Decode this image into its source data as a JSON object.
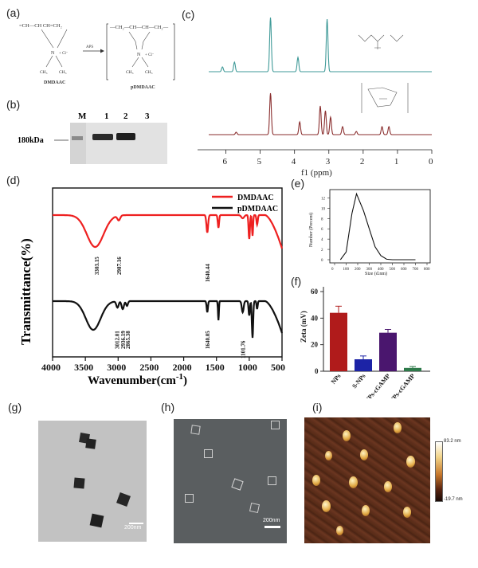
{
  "panels": {
    "a": "(a)",
    "b": "(b)",
    "c": "(c)",
    "d": "(d)",
    "e": "(e)",
    "f": "(f)",
    "g": "(g)",
    "h": "(h)",
    "i": "(i)"
  },
  "scheme": {
    "monomer_label": "DMDAAC",
    "polymer_label": "pDMDAAC",
    "arrow_label": "APS",
    "monomer_formula": "=CH—CH  CH=CH₂",
    "polymer_formula": "—CH₂—CH—CH—CH₂—",
    "methyl": "CH₃"
  },
  "gel": {
    "lanes": [
      "M",
      "1",
      "2",
      "3"
    ],
    "marker": "180kDa"
  },
  "nmr": {
    "xlabel": "f1 (ppm)",
    "ticks": [
      "6",
      "5",
      "4",
      "3",
      "2",
      "1",
      "0"
    ]
  },
  "ftir": {
    "ylabel": "Transmittance(%)",
    "xlabel": "Wavenumber(cm",
    "xlabel_sup": "-1",
    "xlabel_end": ")",
    "ticks": [
      "4000",
      "3500",
      "3000",
      "2500",
      "2000",
      "1500",
      "1000",
      "500"
    ],
    "legend": [
      "DMDAAC",
      "pDMDAAC"
    ],
    "colors": {
      "DMDAAC": "#ee2020",
      "pDMDAAC": "#111111"
    },
    "annotations_top": [
      "3303.15",
      "2987.16",
      "1640.44"
    ],
    "annotations_bottom": [
      "3012.01",
      "2936.19",
      "2865.38",
      "1640.05",
      "1101.76"
    ]
  },
  "dls": {
    "ylabel": "Number (Percent)",
    "xlabel": "Size (d.nm)",
    "xticks": [
      "0",
      "100",
      "200",
      "300",
      "400",
      "500",
      "600",
      "700",
      "800"
    ],
    "yticks": [
      "0",
      "2",
      "4",
      "6",
      "8",
      "10",
      "12"
    ]
  },
  "zeta": {
    "ylabel": "Zeta (mV)",
    "yticks": [
      "0",
      "20",
      "40",
      "60"
    ]
  },
  "micrographs": {
    "scale_g": "200nm",
    "scale_h": "200nm",
    "afm_max": "83.2 nm",
    "afm_min": "-19.7 nm"
  },
  "chart_data": [
    {
      "type": "line",
      "title": "",
      "xlabel": "f1 (ppm)",
      "xlim": [
        6.5,
        0
      ],
      "series": [
        {
          "peaks_ppm": [
            6.1,
            5.75,
            4.7,
            3.9,
            3.05
          ]
        },
        {
          "peaks_ppm": [
            5.7,
            4.7,
            3.85,
            3.25,
            3.1,
            2.95,
            2.6,
            2.2,
            1.45,
            1.25
          ]
        }
      ]
    },
    {
      "type": "line",
      "xlabel": "Wavenumber(cm-1)",
      "ylabel": "Transmittance(%)",
      "xlim": [
        4000,
        500
      ],
      "series": [
        {
          "name": "DMDAAC",
          "minima": [
            3303.15,
            2987.16,
            1640.44,
            1470,
            1000,
            950,
            880
          ]
        },
        {
          "name": "pDMDAAC",
          "minima": [
            3380,
            3012.01,
            2936.19,
            2865.38,
            1640.05,
            1470,
            1101.76,
            950
          ]
        }
      ]
    },
    {
      "type": "line",
      "xlabel": "Size (d.nm)",
      "ylabel": "Number (Percent)",
      "xlim": [
        0,
        800
      ],
      "ylim": [
        0,
        13
      ],
      "series": [
        {
          "x": [
            50,
            100,
            150,
            190,
            250,
            300,
            350,
            400,
            450,
            500,
            700
          ],
          "y": [
            0,
            1.5,
            9,
            12.8,
            9.5,
            6,
            2.5,
            0.8,
            0.1,
            0,
            0
          ]
        }
      ]
    },
    {
      "type": "bar",
      "ylabel": "Zeta (mV)",
      "ylim": [
        0,
        60
      ],
      "categories": [
        "NPs",
        "S-NPs",
        "NPs-cGAMP",
        "S-NPs-cGAMP"
      ],
      "values": [
        44,
        9,
        29,
        2.5
      ],
      "errors": [
        5,
        2.5,
        2.5,
        1
      ],
      "colors": [
        "#b01b1b",
        "#1c23a6",
        "#4a166e",
        "#2e7a4a"
      ]
    }
  ]
}
